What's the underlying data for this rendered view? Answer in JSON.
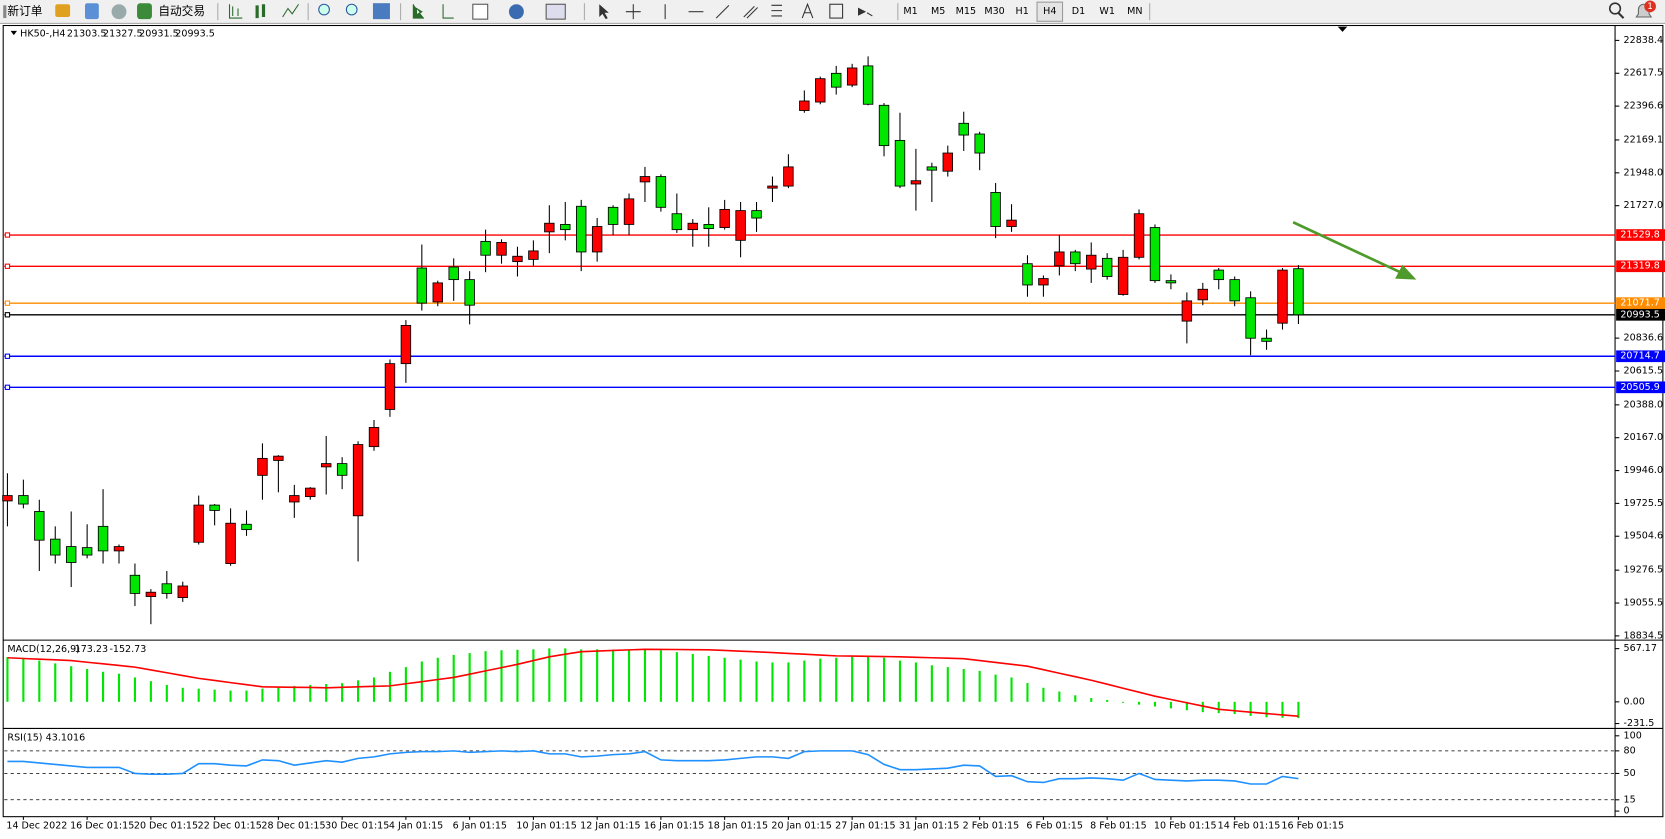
{
  "toolbar": {
    "new_order": "新订单",
    "auto_trading": "自动交易",
    "timeframes": [
      "M1",
      "M5",
      "M15",
      "M30",
      "H1",
      "H4",
      "D1",
      "W1",
      "MN"
    ],
    "notification_count": 1
  },
  "chart_data": [
    {
      "type": "candlestick",
      "title": "HK50-,H4",
      "up_color": "#ff0000",
      "down_color": "#00e600",
      "categories": [
        null,
        "14 Dec 2022",
        null,
        null,
        null,
        "16 Dec 01:15",
        null,
        null,
        null,
        "20 Dec 01:15",
        null,
        null,
        null,
        "22 Dec 01:15",
        null,
        null,
        null,
        "28 Dec 01:15",
        null,
        null,
        null,
        "30 Dec 01:15",
        null,
        null,
        null,
        "4 Jan 01:15",
        null,
        null,
        null,
        "6 Jan 01:15",
        null,
        null,
        null,
        "10 Jan 01:15",
        null,
        null,
        null,
        "12 Jan 01:15",
        null,
        null,
        null,
        "16 Jan 01:15",
        null,
        null,
        null,
        "18 Jan 01:15",
        null,
        null,
        null,
        "20 Jan 01:15",
        null,
        null,
        null,
        "27 Jan 01:15",
        null,
        null,
        null,
        "31 Jan 01:15",
        null,
        null,
        null,
        "2 Feb 01:15",
        null,
        null,
        null,
        "6 Feb 01:15",
        null,
        null,
        null,
        "8 Feb 01:15",
        null,
        null,
        null,
        "10 Feb 01:15",
        null,
        null,
        null,
        "14 Feb 01:15",
        null,
        null,
        null,
        "16 Feb 01:15"
      ],
      "ohlc": [
        [
          19742,
          19928,
          19571,
          19778
        ],
        [
          19778,
          19885,
          19692,
          19721
        ],
        [
          19671,
          19750,
          19271,
          19478
        ],
        [
          19485,
          19571,
          19321,
          19378
        ],
        [
          19435,
          19671,
          19163,
          19328
        ],
        [
          19428,
          19585,
          19356,
          19378
        ],
        [
          19571,
          19821,
          19321,
          19406
        ],
        [
          19406,
          19449,
          19321,
          19435
        ],
        [
          19242,
          19321,
          19035,
          19120
        ],
        [
          19099,
          19149,
          18913,
          19128
        ],
        [
          19185,
          19271,
          19085,
          19120
        ],
        [
          19092,
          19199,
          19063,
          19170
        ],
        [
          19464,
          19778,
          19449,
          19714
        ],
        [
          19714,
          19721,
          19578,
          19678
        ],
        [
          19321,
          19692,
          19306,
          19592
        ],
        [
          19585,
          19678,
          19507,
          19549
        ],
        [
          19914,
          20129,
          19750,
          20028
        ],
        [
          20014,
          20050,
          19800,
          20043
        ],
        [
          19735,
          19850,
          19628,
          19778
        ],
        [
          19771,
          19835,
          19750,
          19828
        ],
        [
          19971,
          20179,
          19785,
          19993
        ],
        [
          19993,
          20036,
          19821,
          19914
        ],
        [
          19642,
          20143,
          19335,
          20121
        ],
        [
          20107,
          20286,
          20079,
          20236
        ],
        [
          20357,
          20693,
          20307,
          20665
        ],
        [
          20665,
          20958,
          20536,
          20922
        ],
        [
          21308,
          21466,
          21022,
          21072
        ],
        [
          21080,
          21223,
          21051,
          21208
        ],
        [
          21315,
          21373,
          21087,
          21230
        ],
        [
          21230,
          21287,
          20929,
          21058
        ],
        [
          21487,
          21566,
          21280,
          21394
        ],
        [
          21394,
          21501,
          21337,
          21480
        ],
        [
          21351,
          21451,
          21251,
          21387
        ],
        [
          21366,
          21494,
          21323,
          21423
        ],
        [
          21551,
          21730,
          21408,
          21609
        ],
        [
          21601,
          21752,
          21494,
          21566
        ],
        [
          21723,
          21766,
          21287,
          21416
        ],
        [
          21416,
          21644,
          21351,
          21587
        ],
        [
          21716,
          21730,
          21530,
          21601
        ],
        [
          21601,
          21809,
          21530,
          21773
        ],
        [
          21887,
          21988,
          21752,
          21923
        ],
        [
          21923,
          21938,
          21687,
          21716
        ],
        [
          21673,
          21809,
          21544,
          21566
        ],
        [
          21566,
          21637,
          21451,
          21609
        ],
        [
          21601,
          21716,
          21451,
          21573
        ],
        [
          21580,
          21766,
          21566,
          21702
        ],
        [
          21494,
          21752,
          21380,
          21694
        ],
        [
          21694,
          21752,
          21551,
          21644
        ],
        [
          21845,
          21923,
          21752,
          21859
        ],
        [
          21859,
          22073,
          21845,
          21988
        ],
        [
          22367,
          22502,
          22352,
          22431
        ],
        [
          22424,
          22595,
          22409,
          22581
        ],
        [
          22617,
          22667,
          22474,
          22524
        ],
        [
          22538,
          22681,
          22524,
          22653
        ],
        [
          22667,
          22731,
          22402,
          22409
        ],
        [
          22402,
          22417,
          22059,
          22131
        ],
        [
          22166,
          22352,
          21845,
          21859
        ],
        [
          21873,
          22109,
          21694,
          21895
        ],
        [
          21988,
          22016,
          21752,
          21966
        ],
        [
          21959,
          22131,
          21923,
          22081
        ],
        [
          22281,
          22359,
          22095,
          22202
        ],
        [
          22209,
          22224,
          21966,
          22081
        ],
        [
          21816,
          21880,
          21509,
          21587
        ],
        [
          21587,
          21737,
          21551,
          21630
        ],
        [
          21337,
          21394,
          21115,
          21194
        ],
        [
          21194,
          21258,
          21115,
          21237
        ],
        [
          21323,
          21530,
          21258,
          21416
        ],
        [
          21416,
          21430,
          21287,
          21337
        ],
        [
          21301,
          21480,
          21208,
          21394
        ],
        [
          21373,
          21408,
          21230,
          21251
        ],
        [
          21130,
          21430,
          21122,
          21380
        ],
        [
          21380,
          21702,
          21366,
          21673
        ],
        [
          21580,
          21601,
          21208,
          21223
        ],
        [
          21223,
          21265,
          21165,
          21208
        ],
        [
          20951,
          21144,
          20801,
          21087
        ],
        [
          21094,
          21208,
          21058,
          21165
        ],
        [
          21294,
          21308,
          21165,
          21230
        ],
        [
          21230,
          21251,
          21051,
          21087
        ],
        [
          21108,
          21151,
          20722,
          20836
        ],
        [
          20836,
          20894,
          20758,
          20815
        ],
        [
          20937,
          21308,
          20894,
          21294
        ],
        [
          21303.5,
          21327.5,
          20931.5,
          20993.5
        ]
      ],
      "ylim": [
        18813,
        22917
      ],
      "yticks": [
        22838.4,
        22617.5,
        22396.6,
        22169.1,
        {
          "value": 21948,
          "label": "21948.0"
        },
        {
          "value": 21727,
          "label": "21727.0"
        },
        20836.6,
        20615.5,
        {
          "value": 20388,
          "label": "20388.0"
        },
        {
          "value": 20167,
          "label": "20167.0"
        },
        {
          "value": 19946,
          "label": "19946.0"
        },
        19725.5,
        19504.6,
        19276.5,
        19055.5,
        18834.5
      ],
      "levels": [
        {
          "value": 21529.8,
          "color": "#ff0000"
        },
        {
          "value": 21319.8,
          "color": "#ff0000"
        },
        {
          "value": 21071.7,
          "color": "#ff8c00"
        },
        {
          "value": 20993.5,
          "color": "#000000"
        },
        {
          "value": 20714.7,
          "color": "#0000ff"
        },
        {
          "value": 20505.9,
          "color": "#0000ff"
        }
      ]
    },
    {
      "type": "macd",
      "title": "MACD(12,26,9)",
      "ylim": [
        -272,
        635
      ],
      "yticks": [
        567.17,
        {
          "value": 0,
          "label": "0.00"
        },
        -231.5
      ],
      "series": [
        {
          "kind": "bar",
          "color": "#00e600",
          "values": [
            476,
            470,
            440,
            410,
            380,
            350,
            320,
            300,
            260,
            220,
            180,
            150,
            140,
            130,
            120,
            120,
            140,
            160,
            170,
            180,
            190,
            200,
            230,
            260,
            320,
            370,
            430,
            470,
            500,
            520,
            540,
            550,
            555,
            560,
            570,
            570,
            560,
            560,
            555,
            555,
            560,
            550,
            530,
            510,
            490,
            470,
            450,
            430,
            420,
            420,
            440,
            460,
            470,
            490,
            490,
            470,
            440,
            420,
            390,
            370,
            350,
            330,
            290,
            260,
            200,
            150,
            110,
            70,
            40,
            20,
            -10,
            -30,
            -50,
            -70,
            -90,
            -110,
            -120,
            -130,
            -150,
            -165,
            -170,
            -173.23
          ]
        },
        {
          "kind": "line",
          "color": "#ff0000",
          "values": [
            470,
            462,
            455,
            448,
            440,
            422,
            405,
            388,
            370,
            340,
            310,
            280,
            250,
            228,
            205,
            183,
            160,
            158,
            155,
            153,
            150,
            155,
            160,
            165,
            170,
            193,
            215,
            238,
            260,
            295,
            330,
            365,
            400,
            440,
            480,
            508,
            535,
            541,
            548,
            554,
            560,
            559,
            558,
            556,
            555,
            548,
            540,
            533,
            525,
            516,
            508,
            499,
            490,
            488,
            485,
            483,
            480,
            475,
            470,
            465,
            460,
            440,
            420,
            400,
            380,
            343,
            305,
            268,
            230,
            188,
            145,
            103,
            60,
            25,
            -10,
            -45,
            -80,
            -95,
            -110,
            -125,
            -140,
            -152.73
          ]
        }
      ]
    },
    {
      "type": "line",
      "title": "RSI(15)",
      "color": "#1e90ff",
      "ylim": [
        -6,
        107
      ],
      "yticks": [
        100,
        80,
        50,
        15,
        0
      ],
      "levels": [
        80,
        50,
        15
      ],
      "values": [
        66,
        66,
        64,
        62,
        60,
        58,
        58,
        58,
        50,
        49,
        49,
        50,
        63,
        63,
        61,
        60,
        68,
        67,
        61,
        64,
        67,
        65,
        70,
        72,
        76,
        78,
        79,
        79,
        80,
        78,
        79,
        80,
        79,
        80,
        76,
        76,
        72,
        73,
        75,
        76,
        79,
        68,
        67,
        67,
        67,
        68,
        70,
        72,
        72,
        70,
        79,
        80,
        80,
        80,
        75,
        62,
        55,
        55,
        56,
        57,
        61,
        60,
        46,
        47,
        39,
        38,
        43,
        43,
        44,
        43,
        41,
        50,
        42,
        41,
        40,
        41,
        41,
        40,
        36,
        36,
        46,
        43.1016
      ]
    }
  ]
}
